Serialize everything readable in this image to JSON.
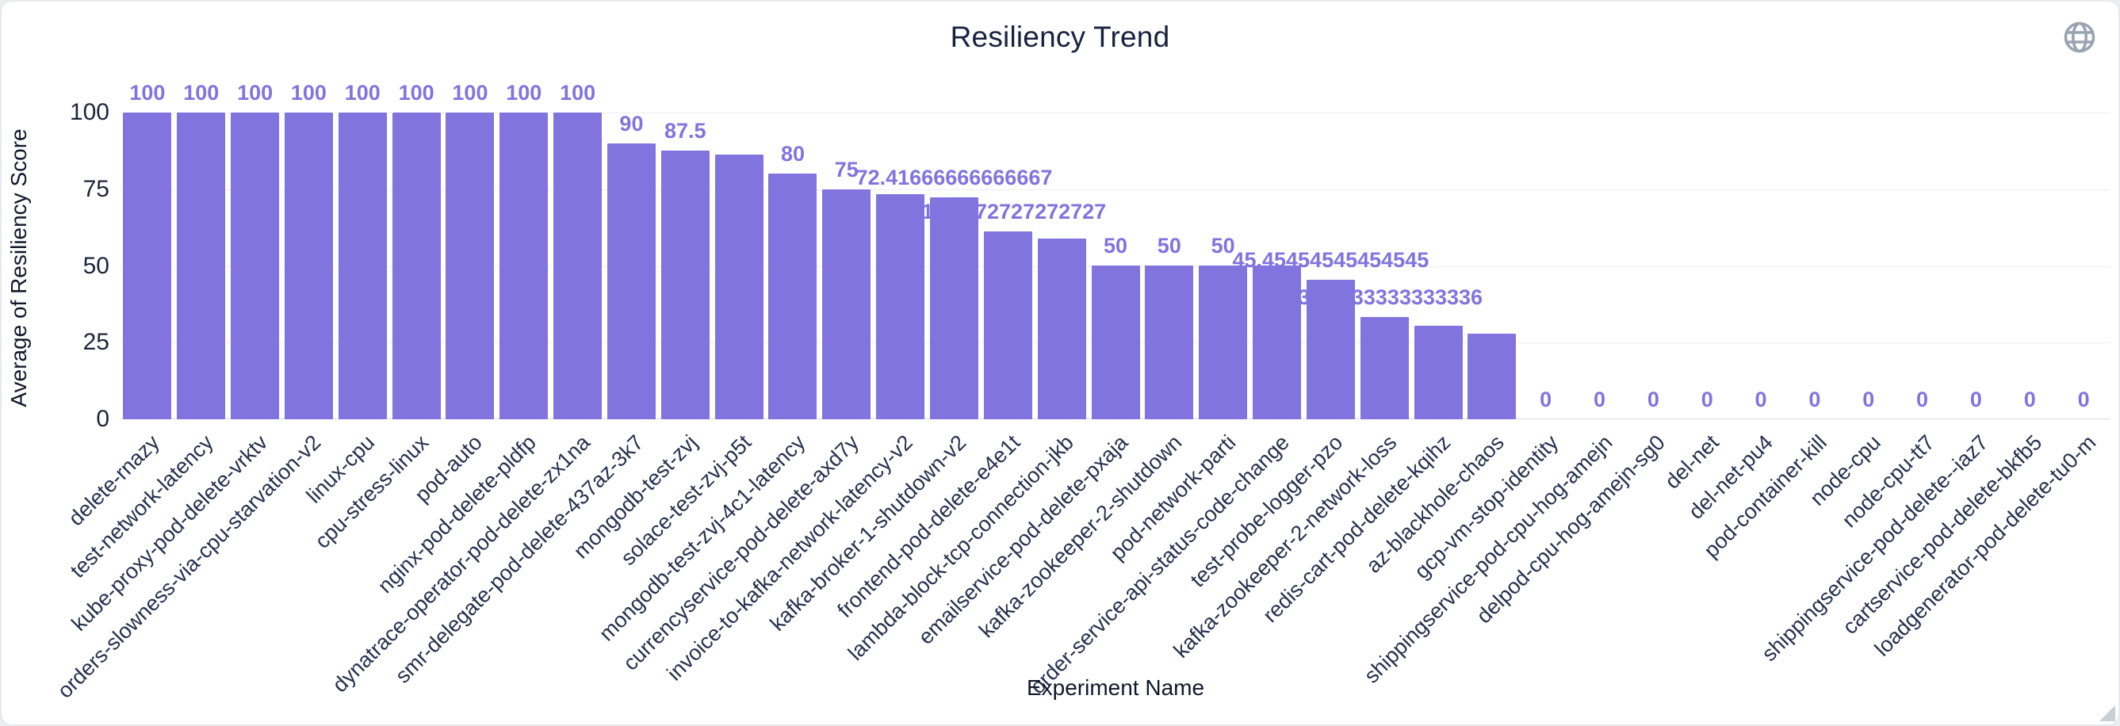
{
  "header": {
    "title": "Resiliency Trend"
  },
  "axes": {
    "x_title": "Experiment Name",
    "y_title": "Average of Resiliency Score"
  },
  "icons": {
    "top_right": "globe-icon"
  },
  "colors": {
    "bar": "#8174de",
    "value_label": "#8174de",
    "gridline": "#eeeef2",
    "axis_line": "#dadce2",
    "title_text": "#16223e",
    "axis_text": "#25314e"
  },
  "chart_data": {
    "type": "bar",
    "title": "Resiliency Trend",
    "xlabel": "Experiment Name",
    "ylabel": "Average of Resiliency Score",
    "ylim": [
      0,
      100
    ],
    "yticks": [
      0,
      25,
      50,
      75,
      100
    ],
    "grid": true,
    "legend_position": "none",
    "bar_color": "#8174de",
    "categories": [
      "delete-rnazy",
      "test-network-latency",
      "kube-proxy-pod-delete-vrktv",
      "orders-slowness-via-cpu-starvation-v2",
      "linux-cpu",
      "cpu-stress-linux",
      "pod-auto",
      "nginx-pod-delete-pldfp",
      "dynatrace-operator-pod-delete-zx1na",
      "smr-delegate-pod-delete-437az-3k7",
      "mongodb-test-zvj",
      "solace-test-zvj-p5t",
      "mongodb-test-zvj-4c1-latency",
      "currencyservice-pod-delete-axd7y",
      "invoice-to-kafka-network-latency-v2",
      "kafka-broker-1-shutdown-v2",
      "frontend-pod-delete-e4e1t",
      "lambda-block-tcp-connection-jkb",
      "emailservice-pod-delete-pxaja",
      "kafka-zookeeper-2-shutdown",
      "pod-network-parti",
      "order-service-api-status-code-change",
      "test-probe-logger-pzo",
      "kafka-zookeeper-2-network-loss",
      "redis-cart-pod-delete-kqihz",
      "az-blackhole-chaos",
      "gcp-vm-stop-identity",
      "shippingservice-pod-cpu-hog-amejn",
      "delpod-cpu-hog-amejn-sg0",
      "del-net",
      "del-net-pu4",
      "pod-container-kill",
      "node-cpu",
      "node-cpu-tt7",
      "shippingservice-pod-delete--iaz7",
      "cartservice-pod-delete-bkfb5",
      "loadgenerator-pod-delete-tu0-m"
    ],
    "values": [
      100,
      100,
      100,
      100,
      100,
      100,
      100,
      100,
      100,
      90,
      87.5,
      86.3,
      80,
      75,
      73.3,
      72.41666666666667,
      61.27272727272727,
      58.9,
      50,
      50,
      50,
      50,
      45.45454545454545,
      33.33333333333336,
      30.5,
      28,
      0,
      0,
      0,
      0,
      0,
      0,
      0,
      0,
      0,
      0,
      0
    ],
    "value_labels": [
      "100",
      "100",
      "100",
      "100",
      "100",
      "100",
      "100",
      "100",
      "100",
      "90",
      "87.5",
      null,
      "80",
      "75",
      null,
      "72.41666666666667",
      "61.27272727272727",
      null,
      "50",
      "50",
      "50",
      null,
      "45.45454545454545",
      "33.33333333333336",
      null,
      null,
      "0",
      "0",
      "0",
      "0",
      "0",
      "0",
      "0",
      "0",
      "0",
      "0",
      "0"
    ]
  }
}
